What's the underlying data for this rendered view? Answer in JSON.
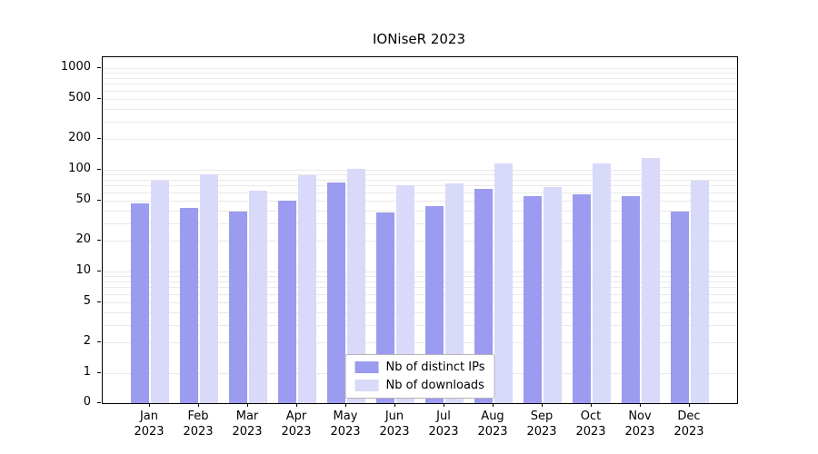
{
  "chart_data": {
    "type": "bar",
    "title": "IONiseR 2023",
    "xlabel": "",
    "ylabel": "",
    "yscale": "symlog",
    "ylim": [
      0,
      1000
    ],
    "yticks": [
      0,
      1,
      2,
      5,
      10,
      20,
      50,
      100,
      200,
      500,
      1000
    ],
    "grid": "horizontal, log minor + major, light gray",
    "legend_position": "lower center",
    "x_labels": [
      "Jan 2023",
      "Feb 2023",
      "Mar 2023",
      "Apr 2023",
      "May 2023",
      "Jun 2023",
      "Jul 2023",
      "Aug 2023",
      "Sep 2023",
      "Oct 2023",
      "Nov 2023",
      "Dec 2023"
    ],
    "series": [
      {
        "name": "Nb of distinct IPs",
        "color": "#9b9bef",
        "values": [
          47,
          42,
          39,
          50,
          75,
          38,
          44,
          65,
          55,
          58,
          55,
          39
        ]
      },
      {
        "name": "Nb of downloads",
        "color": "#d9d9f9",
        "values": [
          78,
          90,
          62,
          88,
          103,
          70,
          74,
          115,
          68,
          115,
          130,
          78
        ]
      }
    ]
  }
}
